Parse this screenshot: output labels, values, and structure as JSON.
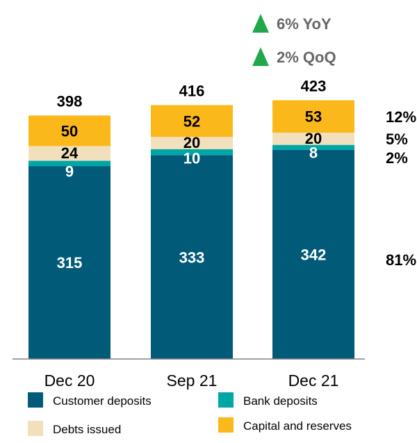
{
  "chart_data": {
    "type": "bar",
    "stacked": true,
    "categories": [
      "Dec 20",
      "Sep 21",
      "Dec 21"
    ],
    "series": [
      {
        "name": "Customer deposits",
        "values": [
          315,
          333,
          342
        ],
        "color": "#005a78"
      },
      {
        "name": "Bank deposits",
        "values": [
          9,
          10,
          8
        ],
        "color": "#00a5a5"
      },
      {
        "name": "Debts issued",
        "values": [
          24,
          20,
          20
        ],
        "color": "#f2e0bc"
      },
      {
        "name": "Capital and reserves",
        "values": [
          50,
          52,
          53
        ],
        "color": "#fbb81b"
      }
    ],
    "totals": [
      "398",
      "416",
      "423"
    ],
    "value_label_colors": [
      "#ffffff",
      "#ffffff",
      "#000000",
      "#000000"
    ],
    "share_labels": [
      "81%",
      "2%",
      "5%",
      "12%"
    ],
    "growth": [
      {
        "label": "6% YoY",
        "icon": "triangle-up-icon",
        "color": "#21a84a"
      },
      {
        "label": "2% QoQ",
        "icon": "triangle-up-icon",
        "color": "#21a84a"
      }
    ],
    "legend": {
      "items": [
        "Customer deposits",
        "Bank deposits",
        "Debts issued",
        "Capital and reserves"
      ],
      "placement": "bottom"
    },
    "ylim": [
      0,
      423
    ],
    "grid": false
  }
}
